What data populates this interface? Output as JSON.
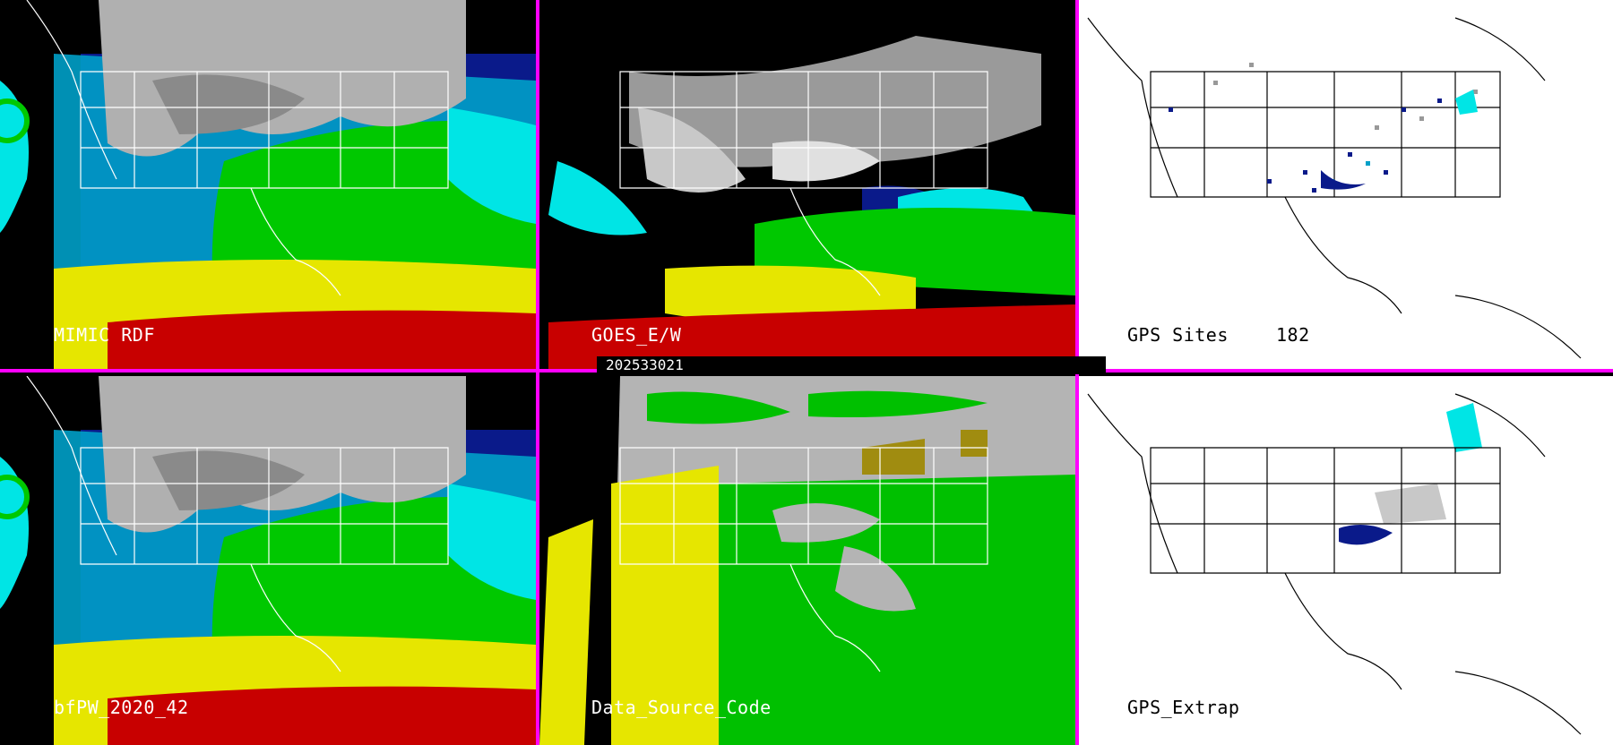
{
  "timestamp": "202533021",
  "panels": {
    "top_left": {
      "label": "MIMIC RDF"
    },
    "top_middle": {
      "label": "GOES_E/W"
    },
    "top_right": {
      "label": "GPS Sites",
      "count": "182"
    },
    "bottom_left": {
      "label": "bfPW_2020_42"
    },
    "bottom_middle": {
      "label": "Data_Source_Code"
    },
    "bottom_right": {
      "label": "GPS_Extrap"
    }
  },
  "colors": {
    "divider": "#ff00ff",
    "map_outline": "#ffffff",
    "map_outline_on_white": "#000000",
    "pw_dry": "#0a1a8a",
    "pw_low": "#00e5e5",
    "pw_mid": "#00c800",
    "pw_high": "#e6e600",
    "pw_max": "#c80000",
    "cloud": "#c0c0c0",
    "source_gray": "#b4b4b4",
    "source_green": "#00c000",
    "source_yellow": "#e6e600",
    "source_olive": "#a08c10"
  }
}
